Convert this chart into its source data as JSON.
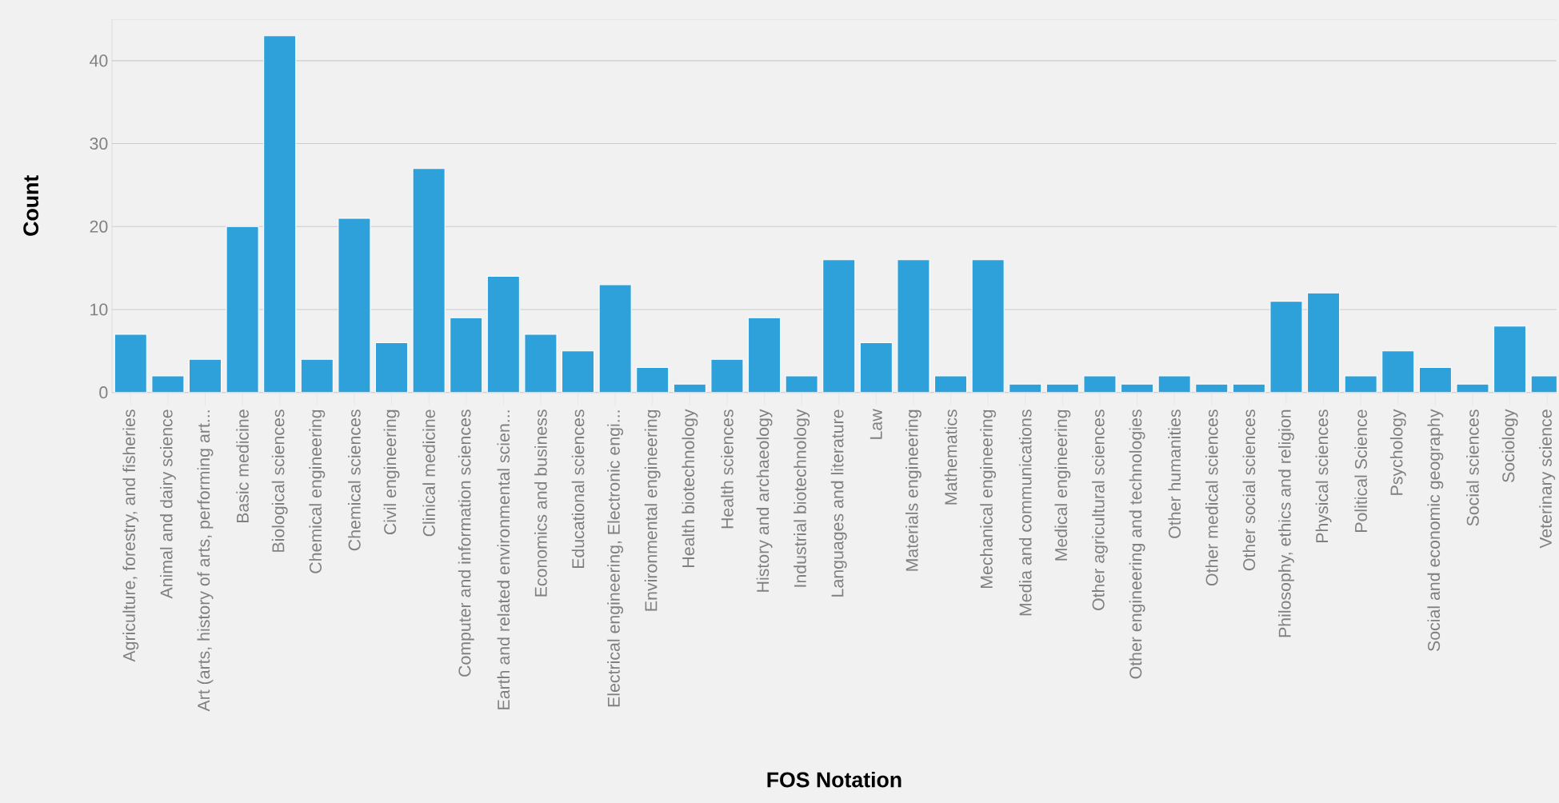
{
  "chart_data": {
    "type": "bar",
    "xlabel": "FOS Notation",
    "ylabel": "Count",
    "color": "#2fa1da",
    "categories": [
      "Agriculture, forestry, and fisheries",
      "Animal and dairy science",
      "Art (arts, history of arts, performing art...",
      "Basic medicine",
      "Biological sciences",
      "Chemical engineering",
      "Chemical sciences",
      "Civil engineering",
      "Clinical medicine",
      "Computer and information sciences",
      "Earth and related environmental scien...",
      "Economics and business",
      "Educational sciences",
      "Electrical engineering, Electronic engi...",
      "Environmental engineering",
      "Health biotechnology",
      "Health sciences",
      "History and archaeology",
      "Industrial biotechnology",
      "Languages and literature",
      "Law",
      "Materials engineering",
      "Mathematics",
      "Mechanical engineering",
      "Media and communications",
      "Medical engineering",
      "Other agricultural sciences",
      "Other engineering and technologies",
      "Other humanities",
      "Other medical sciences",
      "Other social sciences",
      "Philosophy, ethics and religion",
      "Physical sciences",
      "Political Science",
      "Psychology",
      "Social and economic geography",
      "Social sciences",
      "Sociology",
      "Veterinary science"
    ],
    "values": [
      7,
      2,
      4,
      20,
      43,
      4,
      21,
      6,
      27,
      9,
      14,
      7,
      5,
      13,
      3,
      1,
      4,
      9,
      2,
      16,
      6,
      16,
      2,
      16,
      1,
      1,
      2,
      1,
      2,
      1,
      1,
      11,
      12,
      2,
      5,
      3,
      1,
      8,
      2
    ],
    "ylim": [
      0,
      45
    ],
    "yticks": [
      0,
      10,
      20,
      30,
      40
    ],
    "grid": "y"
  }
}
